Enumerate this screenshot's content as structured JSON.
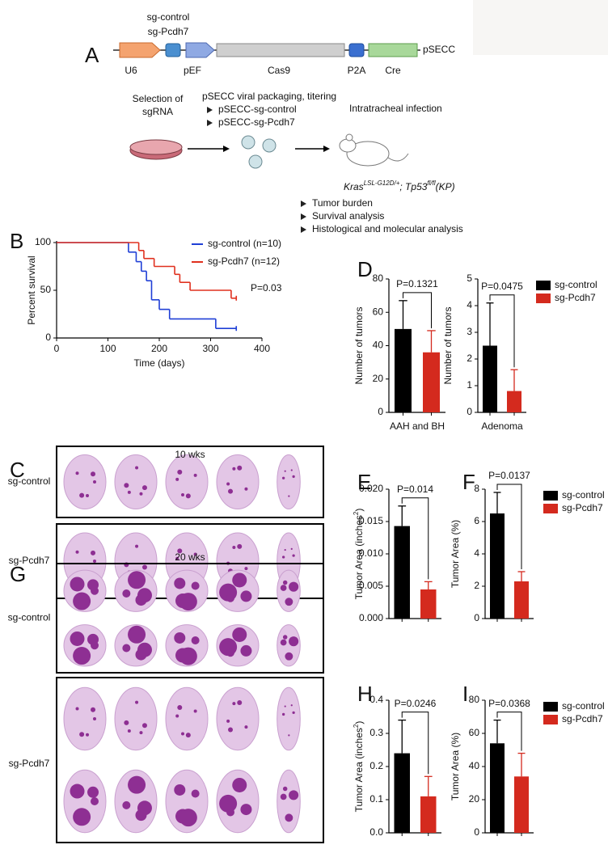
{
  "figure": {
    "panel_labels": [
      "A",
      "B",
      "C",
      "D",
      "E",
      "F",
      "G",
      "H",
      "I"
    ],
    "construct": {
      "guides": [
        "sg-control",
        "sg-Pcdh7"
      ],
      "elements": [
        "U6",
        "pEF",
        "Cas9",
        "P2A",
        "Cre"
      ],
      "name": "pSECC"
    },
    "workflow": {
      "selection": [
        "Selection of",
        "sgRNA"
      ],
      "packaging": "pSECC viral packaging, titering",
      "vectors": [
        "pSECC-sg-control",
        "pSECC-sg-Pcdh7"
      ],
      "infection": "Intratracheal infection",
      "genotype": [
        "Kras",
        "LSL-G12D/+",
        "; Tp53",
        "fl/fl",
        "(KP)"
      ],
      "outcomes": [
        "Tumor burden",
        "Survival analysis",
        "Histological and molecular analysis"
      ]
    },
    "histology": [
      {
        "title": "10 wks",
        "rows": [
          "sg-control",
          "sg-Pcdh7"
        ]
      },
      {
        "title": "20 wks",
        "rows": [
          "sg-control",
          "sg-Pcdh7"
        ]
      }
    ]
  },
  "chart_data": [
    {
      "type": "line",
      "step": true,
      "xlabel": "Time (days)",
      "ylabel": "Percent survival",
      "xlim": [
        0,
        400
      ],
      "xticks": [
        0,
        100,
        200,
        300,
        400
      ],
      "ylim": [
        0,
        100
      ],
      "yticks": [
        0,
        50,
        100
      ],
      "annotation": "P=0.03",
      "legend": "upper right",
      "series": [
        {
          "name": "sg-control (n=10)",
          "color": "#1f3fd6",
          "x": [
            0,
            140,
            155,
            165,
            175,
            185,
            200,
            220,
            310,
            350
          ],
          "values": [
            100,
            90,
            80,
            70,
            60,
            40,
            30,
            20,
            10,
            10
          ]
        },
        {
          "name": "sg-Pcdh7 (n=12)",
          "color": "#e0301e",
          "x": [
            0,
            160,
            170,
            190,
            230,
            240,
            260,
            340,
            350
          ],
          "values": [
            100,
            91.7,
            83.3,
            75,
            66.7,
            58.3,
            50,
            41.7,
            41.7
          ]
        }
      ]
    },
    {
      "type": "bar",
      "ylabel": "Number of tumors",
      "xlabel": "AAH and BH",
      "values": [
        50,
        36
      ],
      "errors": [
        17,
        13
      ],
      "colors": [
        "#000000",
        "#d42a1e"
      ],
      "ylim": [
        0,
        80
      ],
      "yticks": [
        0,
        20,
        40,
        60,
        80
      ],
      "annotation": "P=0.1321"
    },
    {
      "type": "bar",
      "ylabel": "Number of tumors",
      "xlabel": "Adenoma",
      "categories": [
        "sg-control",
        "sg-Pcdh7"
      ],
      "values": [
        2.5,
        0.8
      ],
      "errors": [
        1.6,
        0.8
      ],
      "colors": [
        "#000000",
        "#d42a1e"
      ],
      "ylim": [
        0,
        5
      ],
      "yticks": [
        0,
        1,
        2,
        3,
        4,
        5
      ],
      "annotation": "P=0.0475",
      "legend": "right"
    },
    {
      "type": "bar",
      "ylabel": [
        "Tumor Area (inches",
        "2",
        ")"
      ],
      "values": [
        0.0143,
        0.0045
      ],
      "errors": [
        0.0031,
        0.0012
      ],
      "colors": [
        "#000000",
        "#d42a1e"
      ],
      "ylim": [
        0,
        0.02
      ],
      "yticks": [
        {
          "value": 0,
          "label": "0.000"
        },
        {
          "value": 0.005,
          "label": "0.005"
        },
        {
          "value": 0.01,
          "label": "0.010"
        },
        {
          "value": 0.015,
          "label": "0.015"
        },
        {
          "value": 0.02,
          "label": "0.020"
        }
      ],
      "annotation": "P=0.014"
    },
    {
      "type": "bar",
      "ylabel": "Tumor Area (%)",
      "categories": [
        "sg-control",
        "sg-Pcdh7"
      ],
      "values": [
        6.5,
        2.3
      ],
      "errors": [
        1.3,
        0.6
      ],
      "colors": [
        "#000000",
        "#d42a1e"
      ],
      "ylim": [
        0,
        8
      ],
      "yticks": [
        0,
        2,
        4,
        6,
        8
      ],
      "annotation": "P=0.0137",
      "legend": "right"
    },
    {
      "type": "bar",
      "ylabel": [
        "Tumor Area (inches",
        "2",
        ")"
      ],
      "values": [
        0.24,
        0.11
      ],
      "errors": [
        0.1,
        0.06
      ],
      "colors": [
        "#000000",
        "#d42a1e"
      ],
      "ylim": [
        0,
        0.4
      ],
      "yticks": [
        {
          "value": 0,
          "label": "0.0"
        },
        0.1,
        0.2,
        0.3,
        0.4
      ],
      "annotation": "P=0.0246"
    },
    {
      "type": "bar",
      "ylabel": "Tumor Area (%)",
      "categories": [
        "sg-control",
        "sg-Pcdh7"
      ],
      "values": [
        54,
        34
      ],
      "errors": [
        14,
        14
      ],
      "colors": [
        "#000000",
        "#d42a1e"
      ],
      "ylim": [
        0,
        80
      ],
      "yticks": [
        0,
        20,
        40,
        60,
        80
      ],
      "annotation": "P=0.0368",
      "legend": "right"
    }
  ]
}
